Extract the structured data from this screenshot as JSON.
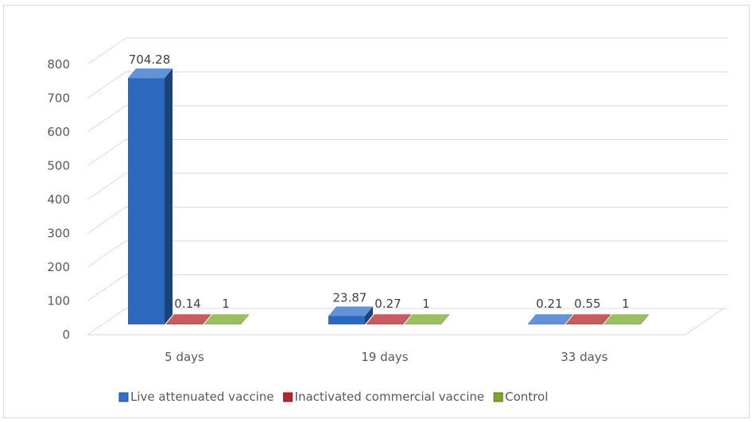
{
  "chart_data": {
    "type": "bar",
    "categories": [
      "5 days",
      "19 days",
      "33 days"
    ],
    "series": [
      {
        "name": "Live attenuated vaccine",
        "values": [
          704.28,
          23.87,
          0.21
        ],
        "color": "#2e6fc7"
      },
      {
        "name": "Inactivated commercial vaccine",
        "values": [
          0.14,
          0.27,
          0.55
        ],
        "color": "#b4262a"
      },
      {
        "name": "Control",
        "values": [
          1,
          1,
          1
        ],
        "color": "#7aa92b"
      }
    ],
    "data_labels": [
      [
        "704.28",
        "23.87",
        "0.21"
      ],
      [
        "0.14",
        "0.27",
        "0.55"
      ],
      [
        "1",
        "1",
        "1"
      ]
    ],
    "y_ticks": [
      "0",
      "100",
      "200",
      "300",
      "400",
      "500",
      "600",
      "700",
      "800"
    ],
    "ylim": [
      0,
      800
    ],
    "grid": true,
    "legend": "bottom",
    "style": "3d-column"
  }
}
